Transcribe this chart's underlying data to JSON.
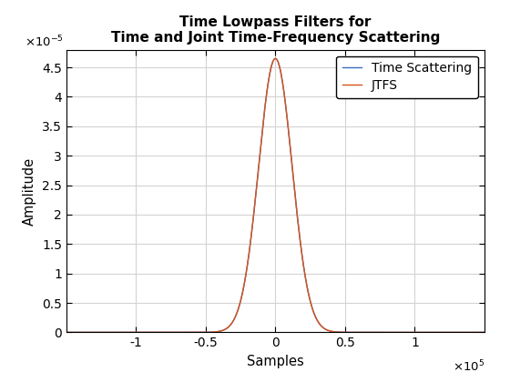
{
  "title_line1": "Time Lowpass Filters for",
  "title_line2": "Time and Joint Time-Frequency Scattering",
  "xlabel": "Samples",
  "ylabel": "Amplitude",
  "xlim": [
    -150000.0,
    150000.0
  ],
  "ylim": [
    0,
    4.8e-05
  ],
  "yticks": [
    0,
    5e-06,
    1e-05,
    1.5e-05,
    2e-05,
    2.5e-05,
    3e-05,
    3.5e-05,
    4e-05,
    4.5e-05
  ],
  "xticks": [
    -100000.0,
    -50000.0,
    0,
    50000.0,
    100000.0
  ],
  "line1_color": "#3a6fbf",
  "line1_label": "Time Scattering",
  "line2_color": "#d95319",
  "line2_label": "JTFS",
  "peak_amplitude": 4.65e-05,
  "sigma": 12000,
  "n_points": 3000,
  "x_range": [
    -150000,
    150000
  ],
  "background_color": "#ffffff",
  "grid_color": "#d3d3d3",
  "title_fontsize": 11,
  "label_fontsize": 10.5,
  "tick_fontsize": 10,
  "legend_fontsize": 10
}
